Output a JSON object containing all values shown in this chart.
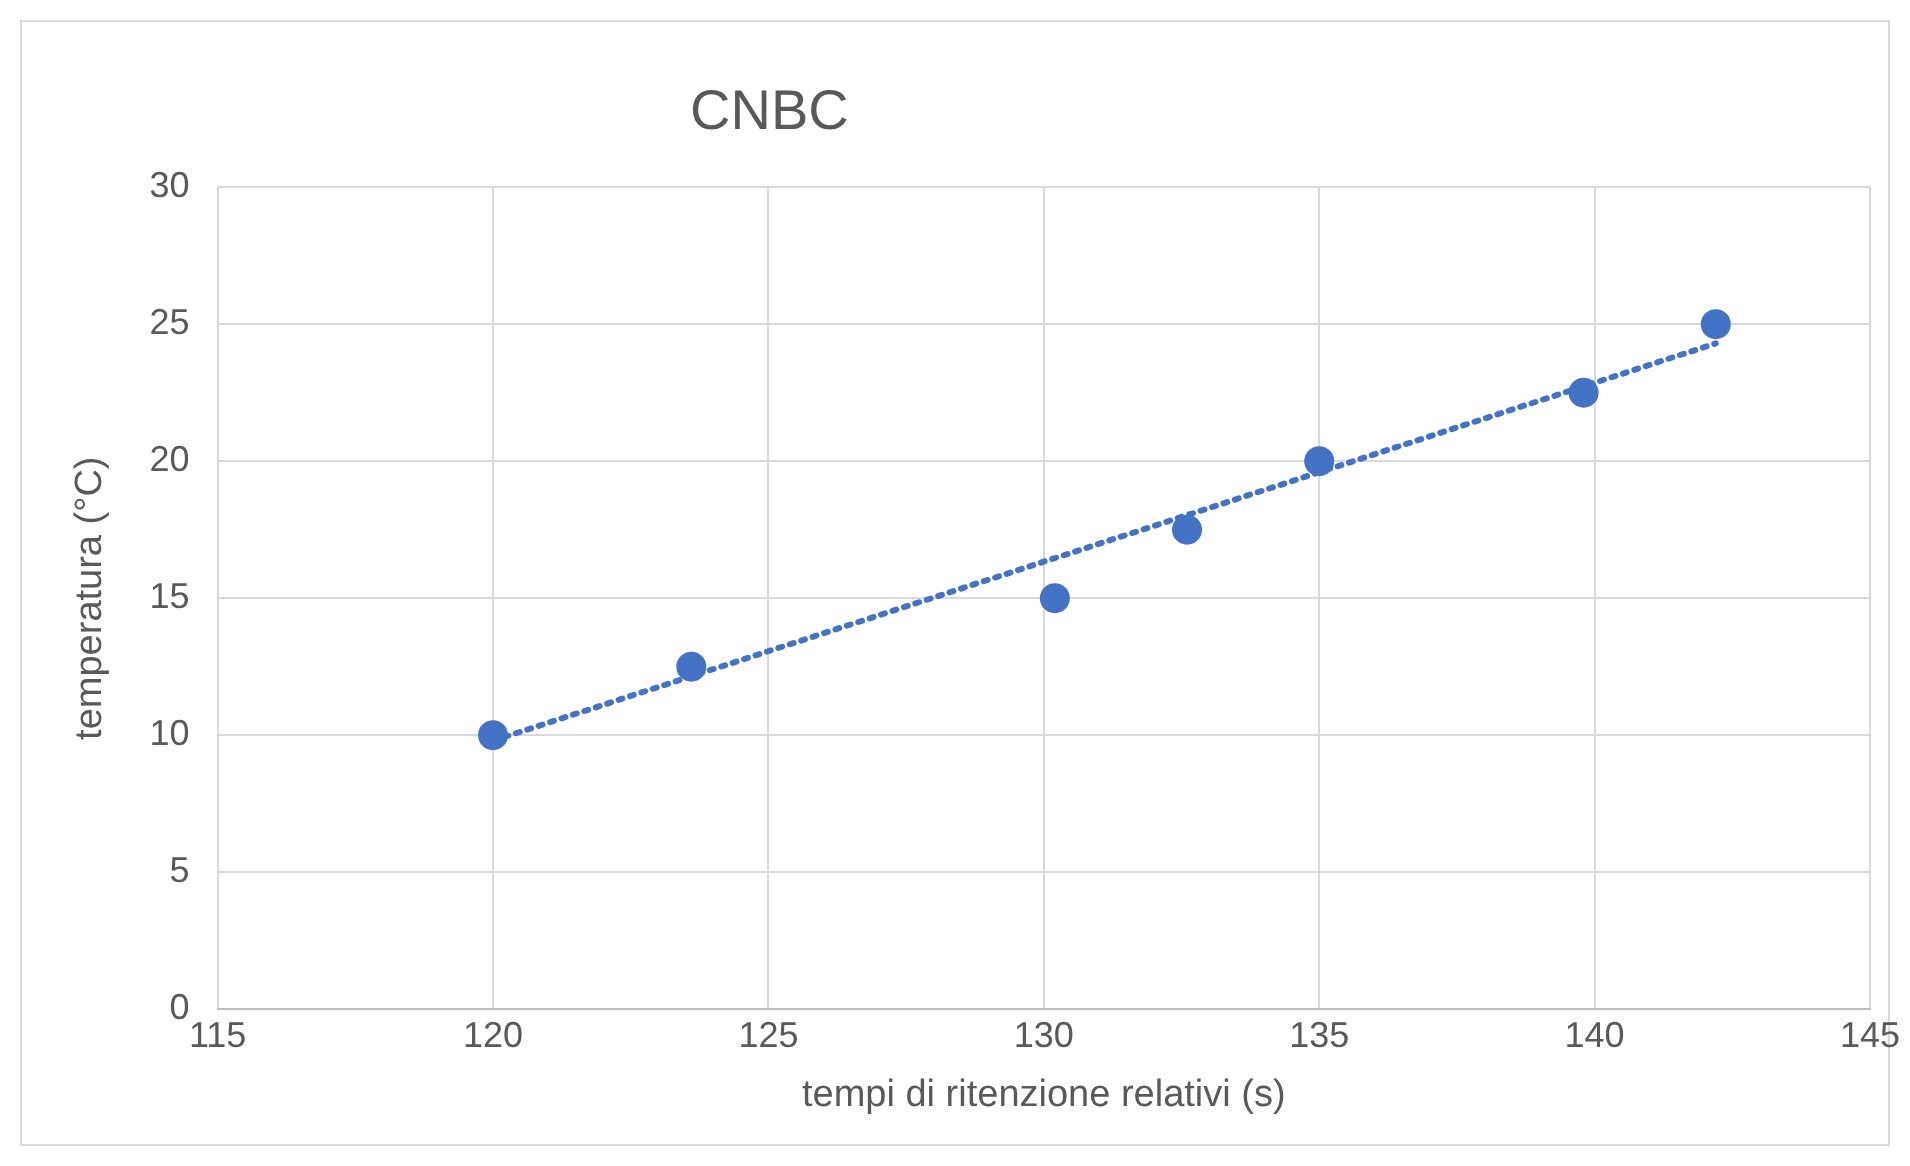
{
  "chart_data": {
    "type": "scatter",
    "title": "CNBC",
    "xlabel": "tempi di ritenzione relativi (s)",
    "ylabel": "temperatura (°C)",
    "xlim": [
      115,
      145
    ],
    "xticks": [
      115,
      120,
      125,
      130,
      135,
      140,
      145
    ],
    "ylim": [
      0,
      30
    ],
    "yticks": [
      0,
      5,
      10,
      15,
      20,
      25,
      30
    ],
    "grid": true,
    "legend": false,
    "marker": "circle",
    "series": [
      {
        "color": "#4472c4",
        "x": [
          120,
          123.6,
          130.2,
          132.6,
          135,
          139.8,
          142.2
        ],
        "values": [
          10,
          12.5,
          15,
          17.5,
          20,
          22.5,
          25
        ]
      },
      {
        "type": "line",
        "color": "#4472c4",
        "marker": "none",
        "line_style": "dotted",
        "x": [
          120,
          142.2
        ],
        "values": [
          9.8,
          24.3
        ]
      }
    ]
  }
}
